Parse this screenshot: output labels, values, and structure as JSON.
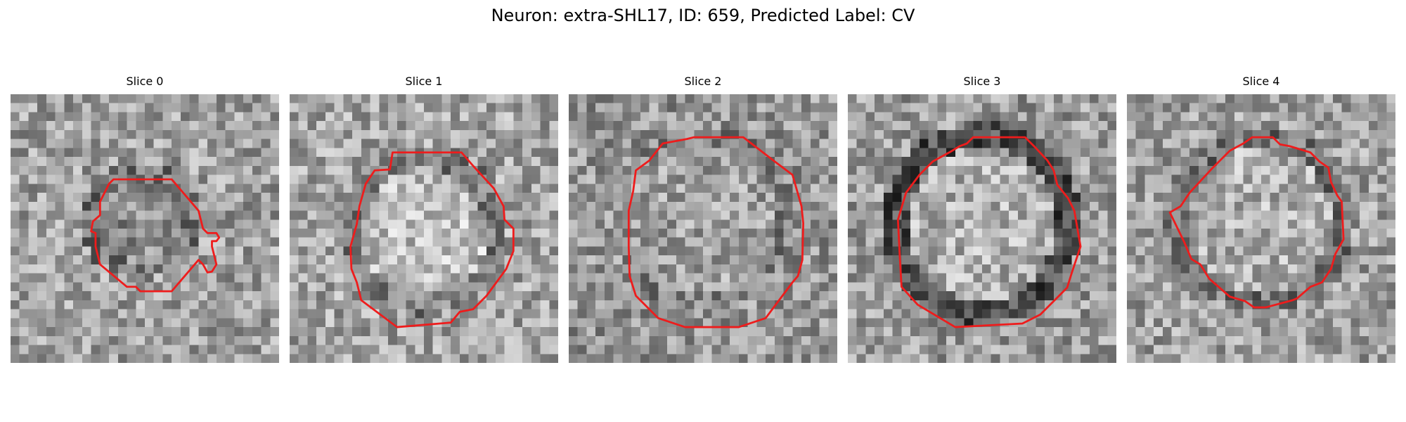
{
  "figure": {
    "title": "Neuron: extra-SHL17, ID: 659, Predicted Label: CV"
  },
  "colors": {
    "contour": "#ee1c1c",
    "background": "#ffffff"
  },
  "panels": [
    {
      "title": "Slice 0",
      "contour": "irregular"
    },
    {
      "title": "Slice 1",
      "contour": "round"
    },
    {
      "title": "Slice 2",
      "contour": "round"
    },
    {
      "title": "Slice 3",
      "contour": "round"
    },
    {
      "title": "Slice 4",
      "contour": "round"
    }
  ]
}
